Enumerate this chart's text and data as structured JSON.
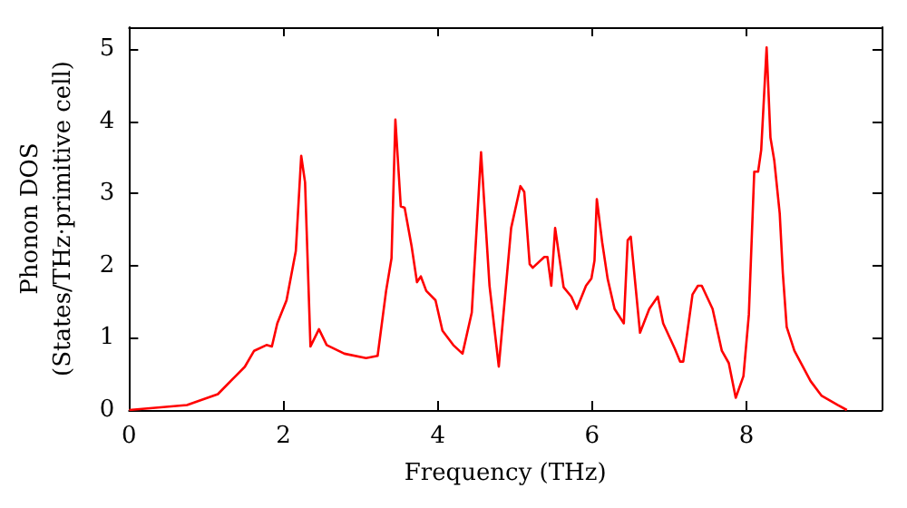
{
  "chart_data": {
    "type": "line",
    "xlabel": "Frequency (THz)",
    "ylabel": "Phonon DOS\n(States/THz·primitive cell)",
    "xlim": [
      0,
      9.75
    ],
    "xticks": [
      0,
      2,
      4,
      6,
      8
    ],
    "ylim": [
      0,
      5.3
    ],
    "yticks": [
      0,
      1,
      2,
      3,
      4,
      5
    ],
    "grid": false,
    "marker": "none",
    "line_style": "solid",
    "series": [
      {
        "color": "#ff0000",
        "x": [
          0,
          0.75,
          1.15,
          1.38,
          1.5,
          1.62,
          1.78,
          1.85,
          1.92,
          2.04,
          2.16,
          2.23,
          2.28,
          2.35,
          2.46,
          2.56,
          2.79,
          3.07,
          3.22,
          3.33,
          3.4,
          3.45,
          3.52,
          3.57,
          3.66,
          3.73,
          3.78,
          3.85,
          3.97,
          4.06,
          4.2,
          4.32,
          4.44,
          4.56,
          4.67,
          4.79,
          4.95,
          5.07,
          5.12,
          5.19,
          5.23,
          5.38,
          5.42,
          5.47,
          5.52,
          5.63,
          5.73,
          5.8,
          5.92,
          5.99,
          6.03,
          6.06,
          6.13,
          6.2,
          6.29,
          6.41,
          6.46,
          6.5,
          6.62,
          6.74,
          6.85,
          6.92,
          7.07,
          7.14,
          7.18,
          7.3,
          7.37,
          7.42,
          7.56,
          7.68,
          7.77,
          7.86,
          7.96,
          8.03,
          8.1,
          8.15,
          8.19,
          8.26,
          8.31,
          8.36,
          8.43,
          8.47,
          8.52,
          8.62,
          8.83,
          8.97,
          9.18,
          9.3
        ],
        "values": [
          0,
          0.07,
          0.22,
          0.47,
          0.6,
          0.82,
          0.9,
          0.88,
          1.2,
          1.52,
          2.2,
          3.52,
          3.15,
          0.88,
          1.12,
          0.9,
          0.78,
          0.72,
          0.75,
          1.65,
          2.1,
          4.02,
          2.82,
          2.8,
          2.27,
          1.77,
          1.85,
          1.65,
          1.52,
          1.1,
          0.9,
          0.78,
          1.35,
          3.57,
          1.72,
          0.6,
          2.52,
          3.1,
          3.02,
          2.02,
          1.97,
          2.12,
          2.12,
          1.72,
          2.52,
          1.7,
          1.57,
          1.4,
          1.72,
          1.82,
          2.07,
          2.92,
          2.32,
          1.82,
          1.4,
          1.2,
          2.35,
          2.4,
          1.07,
          1.4,
          1.57,
          1.2,
          0.85,
          0.67,
          0.67,
          1.6,
          1.72,
          1.72,
          1.4,
          0.82,
          0.65,
          0.17,
          0.47,
          1.32,
          3.3,
          3.3,
          3.6,
          5.02,
          3.77,
          3.45,
          2.72,
          1.9,
          1.15,
          0.82,
          0.4,
          0.2,
          0.07,
          0
        ]
      }
    ]
  }
}
